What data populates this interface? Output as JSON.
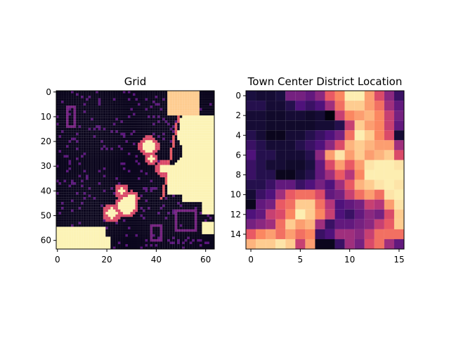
{
  "chart_data": [
    {
      "type": "heatmap",
      "title": "Grid",
      "xlabel": "",
      "ylabel": "",
      "shape": [
        64,
        64
      ],
      "colormap": "magma",
      "value_range": [
        0,
        1
      ],
      "xticks": [
        "0",
        "20",
        "40",
        "60"
      ],
      "yticks": [
        "0",
        "10",
        "20",
        "30",
        "40",
        "50",
        "60"
      ],
      "description_features": {
        "background_value": 0.05,
        "outline_value": 0.35,
        "hot_value": 0.98
      }
    },
    {
      "type": "heatmap",
      "title": "Town Center District Location",
      "xlabel": "",
      "ylabel": "",
      "shape": [
        16,
        16
      ],
      "colormap": "magma",
      "value_range": [
        0,
        1
      ],
      "xticks": [
        "0",
        "5",
        "10",
        "15"
      ],
      "yticks": [
        "0",
        "2",
        "4",
        "6",
        "8",
        "10",
        "12",
        "14"
      ],
      "values": [
        [
          0.12,
          0.1,
          0.1,
          0.12,
          0.35,
          0.35,
          0.3,
          0.4,
          0.65,
          0.75,
          0.97,
          0.97,
          0.8,
          0.6,
          0.4,
          0.2
        ],
        [
          0.15,
          0.15,
          0.1,
          0.1,
          0.15,
          0.25,
          0.2,
          0.25,
          0.45,
          0.7,
          0.9,
          0.9,
          0.8,
          0.7,
          0.45,
          0.3
        ],
        [
          0.1,
          0.1,
          0.08,
          0.08,
          0.1,
          0.1,
          0.08,
          0.1,
          0.02,
          0.55,
          0.75,
          0.8,
          0.85,
          0.75,
          0.55,
          0.35
        ],
        [
          0.1,
          0.1,
          0.08,
          0.08,
          0.08,
          0.08,
          0.08,
          0.1,
          0.1,
          0.15,
          0.55,
          0.9,
          0.8,
          0.75,
          0.55,
          0.3
        ],
        [
          0.15,
          0.1,
          0.05,
          0.05,
          0.1,
          0.1,
          0.15,
          0.2,
          0.25,
          0.35,
          0.7,
          0.97,
          0.9,
          0.75,
          0.6,
          0.1
        ],
        [
          0.2,
          0.15,
          0.1,
          0.1,
          0.1,
          0.15,
          0.2,
          0.25,
          0.4,
          0.6,
          0.85,
          0.9,
          0.85,
          0.8,
          0.8,
          0.45
        ],
        [
          0.25,
          0.15,
          0.15,
          0.1,
          0.1,
          0.1,
          0.15,
          0.4,
          0.8,
          0.95,
          0.8,
          0.9,
          0.8,
          0.85,
          0.9,
          0.6
        ],
        [
          0.2,
          0.15,
          0.1,
          0.1,
          0.08,
          0.08,
          0.12,
          0.3,
          0.6,
          0.8,
          0.65,
          0.8,
          0.95,
          0.97,
          0.97,
          0.95
        ],
        [
          0.2,
          0.15,
          0.15,
          0.05,
          0.05,
          0.1,
          0.15,
          0.3,
          0.45,
          0.65,
          0.5,
          0.75,
          0.97,
          0.97,
          0.97,
          0.97
        ],
        [
          0.15,
          0.15,
          0.2,
          0.3,
          0.3,
          0.2,
          0.25,
          0.35,
          0.25,
          0.45,
          0.65,
          0.85,
          0.9,
          0.95,
          0.97,
          0.95
        ],
        [
          0.1,
          0.2,
          0.25,
          0.45,
          0.65,
          0.7,
          0.7,
          0.6,
          0.3,
          0.35,
          0.55,
          0.7,
          0.8,
          0.7,
          0.95,
          0.97
        ],
        [
          0.05,
          0.3,
          0.35,
          0.65,
          0.7,
          0.9,
          0.9,
          0.7,
          0.5,
          0.25,
          0.3,
          0.35,
          0.55,
          0.5,
          0.8,
          0.95
        ],
        [
          0.25,
          0.3,
          0.55,
          0.6,
          0.75,
          0.97,
          0.9,
          0.75,
          0.55,
          0.25,
          0.2,
          0.3,
          0.4,
          0.35,
          0.6,
          0.9
        ],
        [
          0.35,
          0.4,
          0.45,
          0.7,
          0.9,
          0.8,
          0.85,
          0.45,
          0.2,
          0.3,
          0.3,
          0.35,
          0.4,
          0.55,
          0.65,
          0.9
        ],
        [
          0.65,
          0.75,
          0.8,
          0.7,
          0.8,
          0.7,
          0.75,
          0.2,
          0.25,
          0.45,
          0.45,
          0.4,
          0.55,
          0.7,
          0.7,
          0.7
        ],
        [
          0.85,
          0.9,
          0.9,
          0.95,
          0.9,
          0.55,
          0.8,
          0.05,
          0.05,
          0.2,
          0.45,
          0.35,
          0.6,
          0.7,
          0.45,
          0.3
        ]
      ]
    }
  ]
}
